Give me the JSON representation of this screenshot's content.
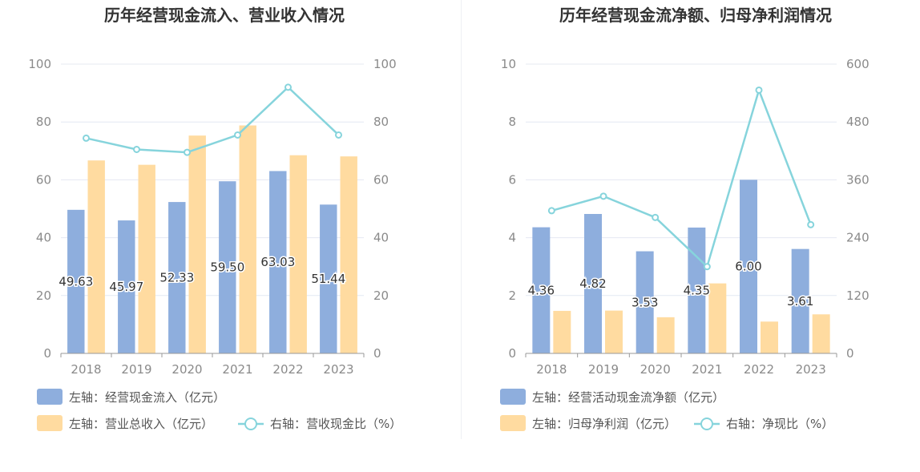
{
  "colors": {
    "bar_primary": "#8eaedd",
    "bar_secondary": "#ffdba0",
    "line": "#86d4dc",
    "grid": "#e4e8f2",
    "axis": "#999999"
  },
  "charts": [
    {
      "title": "历年经营现金流入、营业收入情况",
      "legend": [
        {
          "swatch": "bar",
          "color": "#8eaedd",
          "text": "左轴：经营现金流入（亿元）"
        },
        {
          "swatch": "bar",
          "color": "#ffdba0",
          "text": "左轴：营业总收入（亿元）"
        },
        {
          "swatch": "line",
          "color": "#86d4dc",
          "text": "右轴：营收现金比（%）"
        }
      ]
    },
    {
      "title": "历年经营现金流净额、归母净利润情况",
      "legend": [
        {
          "swatch": "bar",
          "color": "#8eaedd",
          "text": "左轴：经营活动现金流净额（亿元）"
        },
        {
          "swatch": "bar",
          "color": "#ffdba0",
          "text": "左轴：归母净利润（亿元）"
        },
        {
          "swatch": "line",
          "color": "#86d4dc",
          "text": "右轴：净现比（%）"
        }
      ]
    }
  ],
  "chart_data": [
    {
      "type": "bar",
      "title": "历年经营现金流入、营业收入情况",
      "categories": [
        "2018",
        "2019",
        "2020",
        "2021",
        "2022",
        "2023"
      ],
      "y_left": {
        "range": [
          0,
          100
        ],
        "ticks": [
          "0",
          "20",
          "40",
          "60",
          "80",
          "100"
        ]
      },
      "y_right": {
        "range": [
          0,
          100
        ],
        "ticks": [
          "0",
          "20",
          "40",
          "60",
          "80",
          "100"
        ]
      },
      "series": [
        {
          "name": "经营现金流入",
          "axis": "left",
          "type": "bar",
          "values": [
            49.63,
            45.97,
            52.33,
            59.5,
            63.03,
            51.44
          ],
          "labels": [
            "49.63",
            "45.97",
            "52.33",
            "59.50",
            "63.03",
            "51.44"
          ]
        },
        {
          "name": "营业总收入",
          "axis": "left",
          "type": "bar",
          "values": [
            66.7,
            65.2,
            75.3,
            78.8,
            68.5,
            68.1
          ]
        },
        {
          "name": "营收现金比",
          "axis": "right",
          "type": "line",
          "values": [
            74.4,
            70.5,
            69.5,
            75.5,
            92.0,
            75.5
          ]
        }
      ],
      "grid": true,
      "legend_position": "bottom"
    },
    {
      "type": "bar",
      "title": "历年经营现金流净额、归母净利润情况",
      "categories": [
        "2018",
        "2019",
        "2020",
        "2021",
        "2022",
        "2023"
      ],
      "y_left": {
        "range": [
          0,
          10
        ],
        "ticks": [
          "0",
          "2",
          "4",
          "6",
          "8",
          "10"
        ]
      },
      "y_right": {
        "range": [
          0,
          600
        ],
        "ticks": [
          "0",
          "120",
          "240",
          "360",
          "480",
          "600"
        ]
      },
      "series": [
        {
          "name": "经营活动现金流净额",
          "axis": "left",
          "type": "bar",
          "values": [
            4.36,
            4.82,
            3.53,
            4.35,
            6.0,
            3.61
          ],
          "labels": [
            "4.36",
            "4.82",
            "3.53",
            "4.35",
            "6.00",
            "3.61"
          ]
        },
        {
          "name": "归母净利润",
          "axis": "left",
          "type": "bar",
          "values": [
            1.47,
            1.48,
            1.25,
            2.42,
            1.1,
            1.35
          ]
        },
        {
          "name": "净现比",
          "axis": "right",
          "type": "line",
          "values": [
            296,
            326,
            282,
            180,
            546,
            267
          ]
        }
      ],
      "grid": true,
      "legend_position": "bottom"
    }
  ]
}
